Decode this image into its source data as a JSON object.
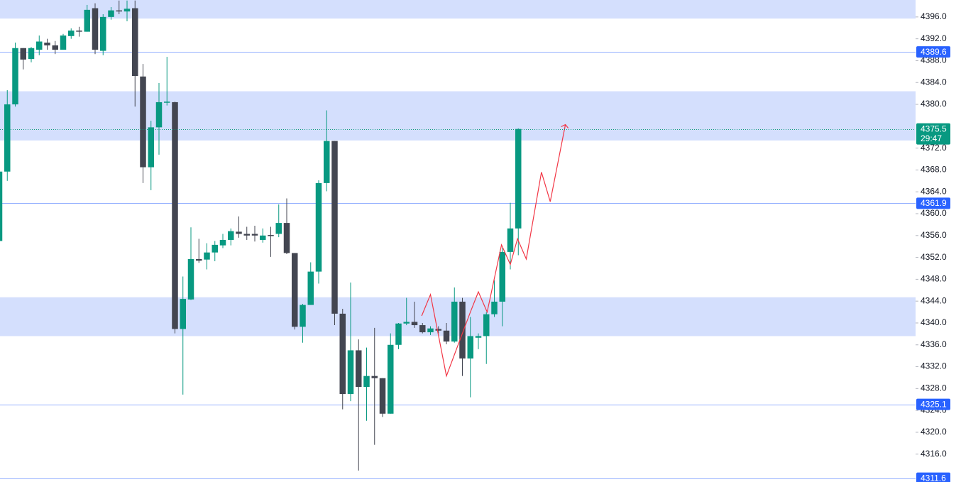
{
  "chart_data": {
    "type": "candlestick",
    "categories": [
      null,
      null,
      null,
      null,
      null,
      null,
      null,
      null,
      null,
      null,
      null,
      null,
      null,
      null,
      null,
      null,
      null,
      null,
      null,
      null,
      null,
      null,
      null,
      null,
      null,
      null,
      null,
      null,
      null,
      null,
      null,
      null,
      null,
      null,
      null,
      null,
      null,
      null,
      null,
      null,
      null,
      null,
      null,
      null,
      null,
      null,
      null,
      null,
      null,
      null,
      null,
      null,
      null,
      null,
      null,
      null,
      null,
      null,
      null,
      null,
      null,
      null,
      null,
      null,
      null,
      null
    ],
    "open": [
      4355.0,
      4367.7,
      4380.0,
      4390.3,
      4388.3,
      4390.0,
      4391.3,
      4390.8,
      4390.0,
      4392.5,
      4393.5,
      4393.3,
      4397.6,
      4389.8,
      4396.0,
      4397.2,
      4397.0,
      4397.6,
      4385.1,
      4368.5,
      4375.8,
      4380.3,
      4380.4,
      4338.9,
      4344.3,
      4351.7,
      4351.6,
      4352.9,
      4354.2,
      4355.2,
      4356.7,
      4356.3,
      4356.3,
      4355.2,
      4356.1,
      4356.3,
      4358.3,
      4352.8,
      4339.3,
      4343.3,
      4349.4,
      4365.6,
      4373.3,
      4341.7,
      4327.0,
      4335.0,
      4328.3,
      4330.3,
      4329.9,
      4323.4,
      4336.0,
      4339.9,
      4340.2,
      4339.6,
      4338.3,
      4338.9,
      4338.6,
      4336.6,
      4343.9,
      4333.5,
      4337.3,
      4337.6,
      4341.6,
      4343.9,
      4353.0,
      4357.3
    ],
    "high": [
      4368.5,
      4382.6,
      4391.3,
      4390.3,
      4390.5,
      4392.6,
      4392.0,
      4391.6,
      4392.9,
      4393.9,
      4394.2,
      4398.2,
      4398.5,
      4396.5,
      4397.8,
      4399.0,
      4399.0,
      4399.0,
      4387.4,
      4377.0,
      4383.9,
      4388.7,
      4380.5,
      4348.5,
      4357.5,
      4355.4,
      4354.6,
      4355.0,
      4356.3,
      4357.3,
      4359.5,
      4357.6,
      4357.8,
      4357.3,
      4357.6,
      4361.7,
      4362.8,
      4352.8,
      4343.5,
      4351.1,
      4366.1,
      4378.9,
      4373.3,
      4342.6,
      4347.4,
      4337.0,
      4335.5,
      4339.1,
      4329.9,
      4338.1,
      4340.0,
      4344.6,
      4343.9,
      4340.0,
      4339.4,
      4339.4,
      4340.0,
      4346.5,
      4344.6,
      4341.1,
      4338.1,
      4342.0,
      4347.8,
      4353.7,
      4362.0,
      4375.6
    ],
    "low": [
      4355.0,
      4366.0,
      4379.6,
      4386.4,
      4387.7,
      4389.0,
      4390.0,
      4389.2,
      4390.0,
      4392.0,
      4392.4,
      4393.3,
      4389.2,
      4389.0,
      4395.5,
      4396.5,
      4395.2,
      4379.6,
      4365.6,
      4364.3,
      4370.8,
      4379.8,
      4338.1,
      4326.9,
      4344.2,
      4351.0,
      4349.8,
      4351.3,
      4353.7,
      4354.2,
      4355.6,
      4355.2,
      4354.9,
      4354.7,
      4352.1,
      4355.7,
      4352.6,
      4338.8,
      4336.4,
      4343.3,
      4347.2,
      4364.1,
      4339.6,
      4324.2,
      4325.7,
      4313.0,
      4322.1,
      4317.7,
      4322.8,
      4323.4,
      4335.2,
      4339.6,
      4339.1,
      4338.1,
      4337.8,
      4338.1,
      4336.1,
      4336.4,
      4330.3,
      4326.4,
      4335.2,
      4332.5,
      4341.1,
      4339.4,
      4349.8,
      4352.4
    ],
    "close": [
      4367.7,
      4380.0,
      4390.3,
      4388.2,
      4390.3,
      4391.5,
      4390.8,
      4390.0,
      4392.6,
      4393.5,
      4393.3,
      4397.3,
      4390.0,
      4396.0,
      4397.2,
      4397.0,
      4397.5,
      4385.2,
      4368.5,
      4375.8,
      4380.4,
      4380.5,
      4338.9,
      4344.4,
      4351.7,
      4351.4,
      4352.9,
      4354.3,
      4355.2,
      4356.8,
      4356.3,
      4356.0,
      4356.0,
      4356.0,
      4355.9,
      4358.3,
      4352.8,
      4339.3,
      4343.3,
      4349.4,
      4365.6,
      4373.3,
      4341.7,
      4327.0,
      4335.0,
      4328.3,
      4330.3,
      4329.9,
      4323.4,
      4336.0,
      4339.9,
      4340.2,
      4339.6,
      4338.3,
      4339.0,
      4338.6,
      4336.6,
      4343.9,
      4333.5,
      4337.6,
      4337.6,
      4341.6,
      4343.9,
      4353.0,
      4357.3,
      4375.5
    ],
    "up_color": "#089981",
    "down_color": "#434651",
    "ylim": [
      4310.9,
      4399.1
    ],
    "yticks": [
      {
        "value": 4396,
        "label": "4396.0"
      },
      {
        "value": 4392,
        "label": "4392.0"
      },
      {
        "value": 4388,
        "label": "4388.0"
      },
      {
        "value": 4384,
        "label": "4384.0"
      },
      {
        "value": 4380,
        "label": "4380.0"
      },
      {
        "value": 4372,
        "label": "4372.0"
      },
      {
        "value": 4368,
        "label": "4368.0"
      },
      {
        "value": 4364,
        "label": "4364.0"
      },
      {
        "value": 4360,
        "label": "4360.0"
      },
      {
        "value": 4356,
        "label": "4356.0"
      },
      {
        "value": 4352,
        "label": "4352.0"
      },
      {
        "value": 4348,
        "label": "4348.0"
      },
      {
        "value": 4344,
        "label": "4344.0"
      },
      {
        "value": 4340,
        "label": "4340.0"
      },
      {
        "value": 4336,
        "label": "4336.0"
      },
      {
        "value": 4332,
        "label": "4332.0"
      },
      {
        "value": 4328,
        "label": "4328.0"
      },
      {
        "value": 4324,
        "label": "4324.0"
      },
      {
        "value": 4320,
        "label": "4320.0"
      },
      {
        "value": 4316,
        "label": "4316.0"
      }
    ],
    "zones": [
      {
        "from": 4395.7,
        "to": 4399.1
      },
      {
        "from": 4373.4,
        "to": 4382.4
      },
      {
        "from": 4337.6,
        "to": 4344.7
      }
    ],
    "zone_color": "#d4dffd",
    "levels": [
      4389.6,
      4361.9,
      4325.1,
      4311.6
    ],
    "level_color": "#2962ff",
    "last_price": 4375.5,
    "countdown": "29:47",
    "projection": {
      "color": "#f23645",
      "x": [
        52.9,
        54.0,
        56.0,
        59.0,
        60.0,
        61.1,
        62.9,
        64.0,
        64.9,
        66.0,
        67.9,
        69.0,
        70.9
      ],
      "values": [
        4341.3,
        4345.2,
        4330.3,
        4342.0,
        4345.7,
        4342.0,
        4354.3,
        4350.7,
        4355.4,
        4351.7,
        4367.6,
        4362.2,
        4376.3
      ]
    }
  }
}
